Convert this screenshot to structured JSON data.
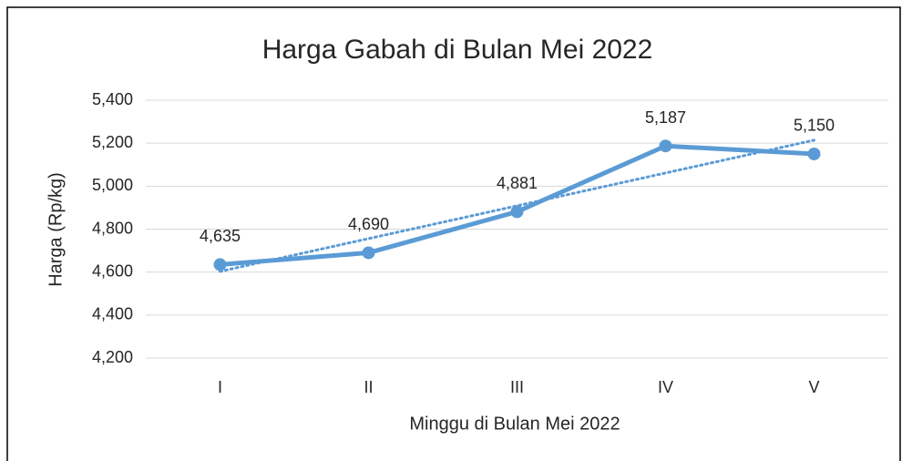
{
  "chart_data": {
    "type": "line",
    "title": "Harga Gabah di Bulan Mei 2022",
    "x_label": "Minggu di Bulan Mei 2022",
    "y_label": "Harga (Rp/kg)",
    "categories": [
      "I",
      "II",
      "III",
      "IV",
      "V"
    ],
    "values": [
      4635,
      4690,
      4881,
      5187,
      5150
    ],
    "value_labels": [
      "4,635",
      "4,690",
      "4,881",
      "5,187",
      "5,150"
    ],
    "color": "#5b9bd5",
    "trendline": true,
    "ylim": [
      4200,
      5400
    ],
    "yticks": [
      {
        "value": 4200,
        "label": "4,200"
      },
      {
        "value": 4400,
        "label": "4,400"
      },
      {
        "value": 4600,
        "label": "4,600"
      },
      {
        "value": 4800,
        "label": "4,800"
      },
      {
        "value": 5000,
        "label": "5,000"
      },
      {
        "value": 5200,
        "label": "5,200"
      },
      {
        "value": 5400,
        "label": "5,400"
      }
    ],
    "grid": true
  }
}
